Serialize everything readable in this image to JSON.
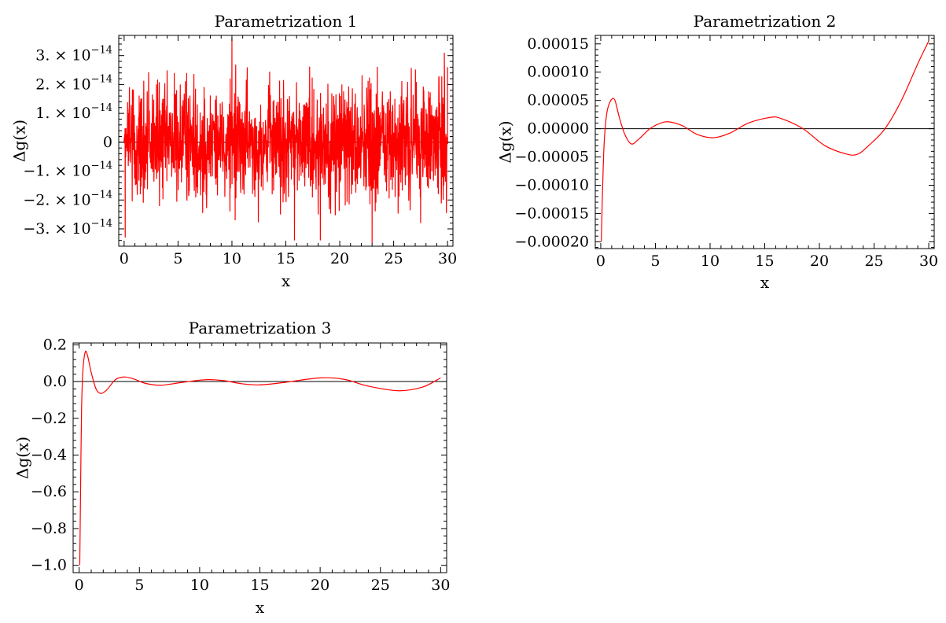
{
  "chart_data": [
    {
      "type": "line",
      "title": "Parametrization 1",
      "xlabel": "x",
      "ylabel": "Δg(x)",
      "xlim": [
        -0.5,
        30.5
      ],
      "ylim": [
        -3.6e-14,
        3.7e-14
      ],
      "x_ticks": [
        0,
        5,
        10,
        15,
        20,
        25,
        30
      ],
      "x_tick_labels": [
        "0",
        "5",
        "10",
        "15",
        "20",
        "25",
        "30"
      ],
      "y_ticks": [
        -3e-14,
        -2e-14,
        -1e-14,
        0,
        1e-14,
        2e-14,
        3e-14
      ],
      "y_tick_labels": [
        {
          "mantissa": "−3.",
          "exp": "−14"
        },
        {
          "mantissa": "−2.",
          "exp": "−14"
        },
        {
          "mantissa": "−1.",
          "exp": "−14"
        },
        {
          "mantissa": "0",
          "exp": ""
        },
        {
          "mantissa": "1.",
          "exp": "−14"
        },
        {
          "mantissa": "2.",
          "exp": "−14"
        },
        {
          "mantissa": "3.",
          "exp": "−14"
        }
      ],
      "y_tick_times": "×",
      "y_tick_base": "10",
      "grid": false,
      "series": [
        {
          "color": "#ff0000",
          "style": "noise",
          "x_range": [
            0,
            30
          ],
          "y_envelope": [
            -3.5e-14,
            3.6e-14
          ],
          "points": [
            [
              0.0,
              0.0
            ],
            [
              0.1,
              -3.3e-14
            ],
            [
              0.5,
              1.3e-14
            ],
            [
              1.5,
              -1.8e-14
            ],
            [
              3.0,
              2e-14
            ],
            [
              5.8,
              2.4e-14
            ],
            [
              10.0,
              3.6e-14
            ],
            [
              10.3,
              -2.7e-14
            ],
            [
              14.5,
              -2.5e-14
            ],
            [
              15.8,
              -3.4e-14
            ],
            [
              18.2,
              -3.4e-14
            ],
            [
              19.8,
              -6e-15
            ],
            [
              20.2,
              2e-14
            ],
            [
              23.0,
              -3.5e-14
            ],
            [
              27.5,
              -2.8e-14
            ],
            [
              29.7,
              3.1e-14
            ],
            [
              30.0,
              2.6e-14
            ]
          ]
        }
      ]
    },
    {
      "type": "line",
      "title": "Parametrization 2",
      "xlabel": "x",
      "ylabel": "Δg(x)",
      "xlim": [
        -0.5,
        30.5
      ],
      "ylim": [
        -0.000212,
        0.000165
      ],
      "x_ticks": [
        0,
        5,
        10,
        15,
        20,
        25,
        30
      ],
      "x_tick_labels": [
        "0",
        "5",
        "10",
        "15",
        "20",
        "25",
        "30"
      ],
      "y_ticks": [
        -0.0002,
        -0.00015,
        -0.0001,
        -5e-05,
        0,
        5e-05,
        0.0001,
        0.00015
      ],
      "y_tick_labels": [
        "−0.00020",
        "−0.00015",
        "−0.00010",
        "−0.00005",
        "0.00000",
        "0.00005",
        "0.00010",
        "0.00015"
      ],
      "grid": false,
      "series": [
        {
          "color": "#ff0000",
          "points": [
            [
              0.05,
              -0.0002
            ],
            [
              0.15,
              -0.00012
            ],
            [
              0.3,
              -3e-05
            ],
            [
              0.5,
              2e-05
            ],
            [
              0.7,
              4e-05
            ],
            [
              1.0,
              5.2e-05
            ],
            [
              1.3,
              5e-05
            ],
            [
              1.7,
              2e-05
            ],
            [
              2.2,
              -1e-05
            ],
            [
              2.8,
              -2.7e-05
            ],
            [
              3.5,
              -1.8e-05
            ],
            [
              4.5,
              0.0
            ],
            [
              5.5,
              1e-05
            ],
            [
              6.3,
              1.2e-05
            ],
            [
              7.5,
              5e-06
            ],
            [
              8.8,
              -1e-05
            ],
            [
              10.3,
              -1.6e-05
            ],
            [
              11.8,
              -8e-06
            ],
            [
              13.5,
              1e-05
            ],
            [
              15.5,
              2e-05
            ],
            [
              16.5,
              1.8e-05
            ],
            [
              18.5,
              0.0
            ],
            [
              20.5,
              -3e-05
            ],
            [
              22.5,
              -4.5e-05
            ],
            [
              23.5,
              -4.5e-05
            ],
            [
              24.5,
              -3e-05
            ],
            [
              26.0,
              0.0
            ],
            [
              27.5,
              5e-05
            ],
            [
              29.0,
              0.000115
            ],
            [
              30.0,
              0.000155
            ]
          ]
        }
      ]
    },
    {
      "type": "line",
      "title": "Parametrization 3",
      "xlabel": "x",
      "ylabel": "Δg(x)",
      "xlim": [
        -0.5,
        30.5
      ],
      "ylim": [
        -1.04,
        0.21
      ],
      "x_ticks": [
        0,
        5,
        10,
        15,
        20,
        25,
        30
      ],
      "x_tick_labels": [
        "0",
        "5",
        "10",
        "15",
        "20",
        "25",
        "30"
      ],
      "y_ticks": [
        -1.0,
        -0.8,
        -0.6,
        -0.4,
        -0.2,
        0.0,
        0.2
      ],
      "y_tick_labels": [
        "−1.0",
        "−0.8",
        "−0.6",
        "−0.4",
        "−0.2",
        "0.0",
        "0.2"
      ],
      "grid": false,
      "series": [
        {
          "color": "#ff0000",
          "points": [
            [
              0.05,
              -1.0
            ],
            [
              0.1,
              -0.7
            ],
            [
              0.15,
              -0.4
            ],
            [
              0.2,
              -0.15
            ],
            [
              0.3,
              0.05
            ],
            [
              0.5,
              0.16
            ],
            [
              0.7,
              0.14
            ],
            [
              1.0,
              0.05
            ],
            [
              1.4,
              -0.04
            ],
            [
              1.8,
              -0.065
            ],
            [
              2.3,
              -0.045
            ],
            [
              3.0,
              0.01
            ],
            [
              3.7,
              0.025
            ],
            [
              4.5,
              0.015
            ],
            [
              5.5,
              -0.01
            ],
            [
              6.8,
              -0.02
            ],
            [
              8.5,
              -0.005
            ],
            [
              10.5,
              0.01
            ],
            [
              12.0,
              0.005
            ],
            [
              13.5,
              -0.012
            ],
            [
              15.0,
              -0.018
            ],
            [
              17.0,
              -0.005
            ],
            [
              20.0,
              0.02
            ],
            [
              22.0,
              0.012
            ],
            [
              24.0,
              -0.025
            ],
            [
              26.5,
              -0.05
            ],
            [
              28.5,
              -0.03
            ],
            [
              30.0,
              0.02
            ]
          ]
        }
      ]
    }
  ]
}
